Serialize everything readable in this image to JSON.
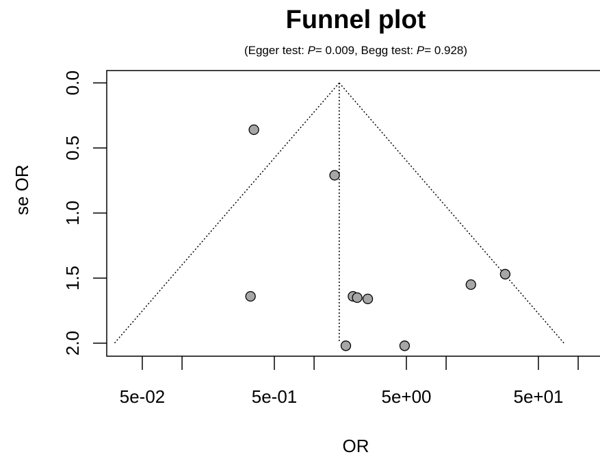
{
  "chart_data": {
    "type": "scatter",
    "title": "Funnel plot",
    "subtitle": {
      "prefix": "(Egger test: ",
      "p_symbol_1": "P",
      "egger_value": "= 0.009",
      "middle": ", Begg test: ",
      "p_symbol_2": "P",
      "begg_value": "= 0.928)"
    },
    "xlabel": "OR",
    "ylabel": "se OR",
    "x_scale": "log",
    "y_reversed": true,
    "xlim": [
      0.03,
      150
    ],
    "ylim": [
      0,
      2.1
    ],
    "x_ticks": [
      0.05,
      0.1,
      0.5,
      1,
      5,
      10,
      50,
      100
    ],
    "x_tick_labels": [
      {
        "value": 0.05,
        "label": "5e-02"
      },
      {
        "value": 0.5,
        "label": "5e-01"
      },
      {
        "value": 5,
        "label": "5e+00"
      },
      {
        "value": 50,
        "label": "5e+01"
      }
    ],
    "y_ticks": [
      {
        "value": 0.0,
        "label": "0.0"
      },
      {
        "value": 0.5,
        "label": "0.5"
      },
      {
        "value": 1.0,
        "label": "1.0"
      },
      {
        "value": 1.5,
        "label": "1.5"
      },
      {
        "value": 2.0,
        "label": "2.0"
      }
    ],
    "pooled_or": 1.55,
    "funnel_se_max": 2.0,
    "points": [
      {
        "x": 0.35,
        "y": 0.36
      },
      {
        "x": 1.43,
        "y": 0.71
      },
      {
        "x": 0.33,
        "y": 1.64
      },
      {
        "x": 1.97,
        "y": 1.64
      },
      {
        "x": 2.12,
        "y": 1.65
      },
      {
        "x": 2.55,
        "y": 1.66
      },
      {
        "x": 15.4,
        "y": 1.55
      },
      {
        "x": 28.0,
        "y": 1.47
      },
      {
        "x": 1.74,
        "y": 2.02
      },
      {
        "x": 4.85,
        "y": 2.02
      }
    ],
    "colors": {
      "point_fill": "#a6a6a6",
      "point_stroke": "#000000"
    }
  }
}
